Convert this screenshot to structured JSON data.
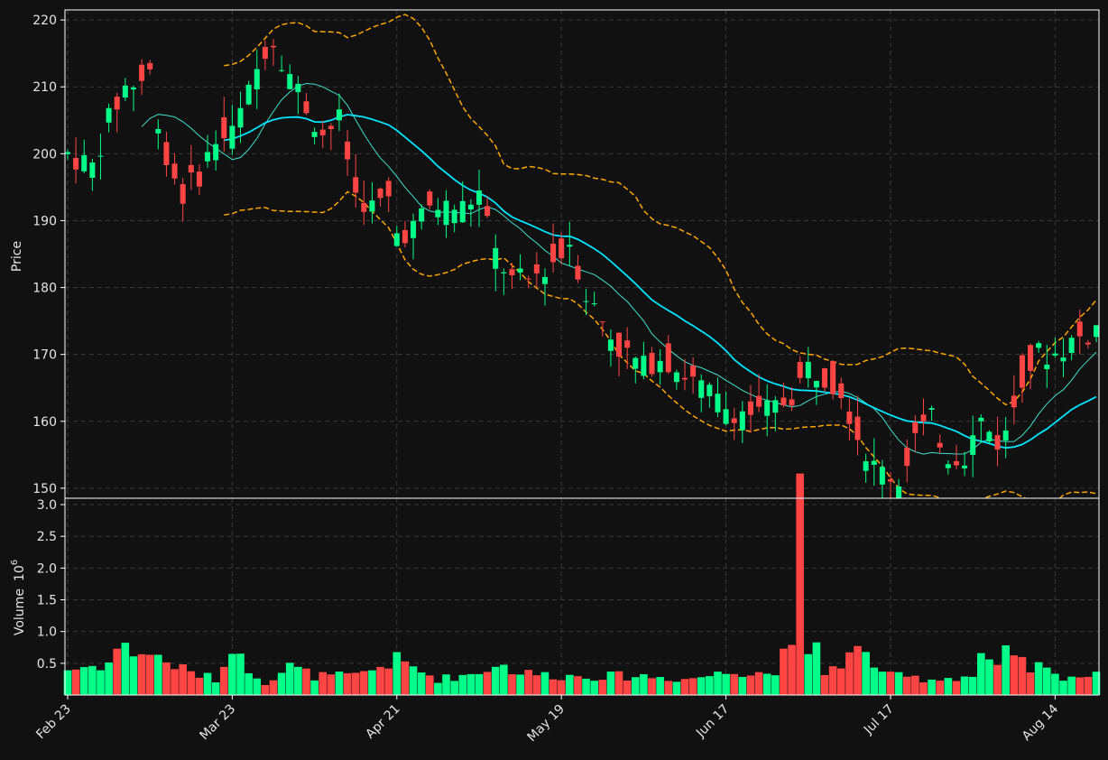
{
  "chart_data": {
    "type": "candlestick",
    "grid": true,
    "colors": {
      "background": "#111111",
      "up": "#00ff88",
      "down": "#ff4444",
      "ma_fast": "#40e0d0",
      "ma_slow": "#00e5ff",
      "bands": "#ffa500",
      "grid": "#3a3a3a",
      "spine": "#ffffff"
    },
    "price_panel": {
      "ylabel": "Price",
      "ylim": [
        148.5,
        221.5
      ],
      "yticks": [
        150,
        160,
        170,
        180,
        190,
        200,
        210,
        220
      ]
    },
    "volume_panel": {
      "ylabel": "Volume",
      "scale_label": "10",
      "scale_exp": "6",
      "ylim": [
        0,
        3.1
      ],
      "yticks": [
        "0.5",
        "1.0",
        "1.5",
        "2.0",
        "2.5",
        "3.0"
      ]
    },
    "x_tick_labels": [
      {
        "index": 0,
        "label": "Feb 23"
      },
      {
        "index": 20,
        "label": "Mar 23"
      },
      {
        "index": 40,
        "label": "Apr 21"
      },
      {
        "index": 60,
        "label": "May 19"
      },
      {
        "index": 80,
        "label": "Jun 17"
      },
      {
        "index": 100,
        "label": "Jul 17"
      },
      {
        "index": 120,
        "label": "Aug 14"
      }
    ],
    "price_anchors": [
      [
        0,
        200
      ],
      [
        3,
        198
      ],
      [
        5,
        205
      ],
      [
        7,
        210
      ],
      [
        9,
        211
      ],
      [
        10,
        212
      ],
      [
        12,
        199
      ],
      [
        14,
        194
      ],
      [
        16,
        197
      ],
      [
        18,
        202
      ],
      [
        20,
        203
      ],
      [
        22,
        209
      ],
      [
        24,
        216
      ],
      [
        25,
        217
      ],
      [
        27,
        212
      ],
      [
        29,
        207
      ],
      [
        31,
        203
      ],
      [
        33,
        205
      ],
      [
        35,
        194
      ],
      [
        37,
        192
      ],
      [
        39,
        193
      ],
      [
        40,
        188
      ],
      [
        42,
        189
      ],
      [
        44,
        192
      ],
      [
        46,
        192
      ],
      [
        48,
        192
      ],
      [
        50,
        194
      ],
      [
        52,
        185
      ],
      [
        54,
        181
      ],
      [
        56,
        181
      ],
      [
        58,
        183
      ],
      [
        60,
        185
      ],
      [
        61,
        187
      ],
      [
        63,
        179
      ],
      [
        65,
        175
      ],
      [
        67,
        171
      ],
      [
        70,
        168
      ],
      [
        72,
        170
      ],
      [
        74,
        168
      ],
      [
        76,
        166
      ],
      [
        78,
        164
      ],
      [
        80,
        162
      ],
      [
        84,
        161
      ],
      [
        86,
        162
      ],
      [
        88,
        164
      ],
      [
        90,
        168
      ],
      [
        92,
        167
      ],
      [
        94,
        165
      ],
      [
        96,
        158
      ],
      [
        98,
        153
      ],
      [
        100,
        152
      ],
      [
        101,
        151
      ],
      [
        103,
        158
      ],
      [
        105,
        160
      ],
      [
        107,
        155
      ],
      [
        109,
        155
      ],
      [
        111,
        160
      ],
      [
        113,
        157
      ],
      [
        114,
        158
      ],
      [
        116,
        167
      ],
      [
        118,
        170
      ],
      [
        120,
        170
      ],
      [
        122,
        172
      ],
      [
        124,
        173
      ],
      [
        125,
        174
      ]
    ],
    "volume_anchors": [
      [
        0,
        0.4
      ],
      [
        5,
        0.5
      ],
      [
        6,
        0.75
      ],
      [
        10,
        0.65
      ],
      [
        15,
        0.35
      ],
      [
        18,
        0.25
      ],
      [
        19,
        0.45
      ],
      [
        20,
        0.85
      ],
      [
        21,
        0.55
      ],
      [
        24,
        0.2
      ],
      [
        27,
        0.45
      ],
      [
        30,
        0.3
      ],
      [
        35,
        0.3
      ],
      [
        40,
        0.55
      ],
      [
        45,
        0.25
      ],
      [
        50,
        0.35
      ],
      [
        52,
        0.5
      ],
      [
        55,
        0.35
      ],
      [
        60,
        0.3
      ],
      [
        65,
        0.3
      ],
      [
        70,
        0.3
      ],
      [
        75,
        0.25
      ],
      [
        80,
        0.35
      ],
      [
        84,
        0.4
      ],
      [
        86,
        0.3
      ],
      [
        87,
        0.75
      ],
      [
        88,
        1.05
      ],
      [
        89,
        2.85
      ],
      [
        90,
        0.55
      ],
      [
        91,
        0.7
      ],
      [
        92,
        0.35
      ],
      [
        96,
        0.7
      ],
      [
        100,
        0.3
      ],
      [
        105,
        0.25
      ],
      [
        110,
        0.3
      ],
      [
        111,
        0.65
      ],
      [
        113,
        0.4
      ],
      [
        114,
        0.65
      ],
      [
        117,
        0.4
      ],
      [
        118,
        0.45
      ],
      [
        120,
        0.3
      ],
      [
        125,
        0.3
      ]
    ]
  }
}
